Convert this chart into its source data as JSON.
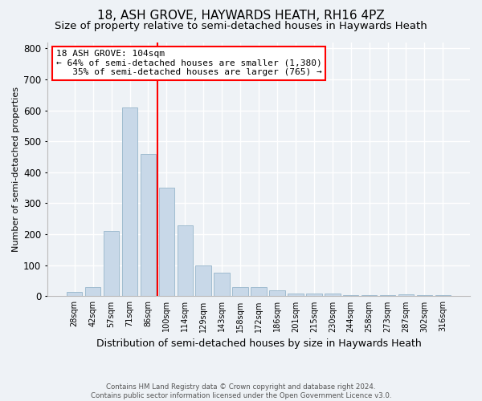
{
  "title": "18, ASH GROVE, HAYWARDS HEATH, RH16 4PZ",
  "subtitle": "Size of property relative to semi-detached houses in Haywards Heath",
  "xlabel": "Distribution of semi-detached houses by size in Haywards Heath",
  "ylabel": "Number of semi-detached properties",
  "footer_line1": "Contains HM Land Registry data © Crown copyright and database right 2024.",
  "footer_line2": "Contains public sector information licensed under the Open Government Licence v3.0.",
  "categories": [
    "28sqm",
    "42sqm",
    "57sqm",
    "71sqm",
    "86sqm",
    "100sqm",
    "114sqm",
    "129sqm",
    "143sqm",
    "158sqm",
    "172sqm",
    "186sqm",
    "201sqm",
    "215sqm",
    "230sqm",
    "244sqm",
    "258sqm",
    "273sqm",
    "287sqm",
    "302sqm",
    "316sqm"
  ],
  "values": [
    15,
    30,
    210,
    610,
    460,
    350,
    230,
    100,
    75,
    30,
    30,
    20,
    10,
    8,
    8,
    3,
    3,
    3,
    5,
    3,
    3
  ],
  "bar_color": "#c8d8e8",
  "bar_edge_color": "#a0bcd0",
  "red_line_x": 4.5,
  "annotation_line1": "18 ASH GROVE: 104sqm",
  "annotation_line2": "← 64% of semi-detached houses are smaller (1,380)",
  "annotation_line3": "   35% of semi-detached houses are larger (765) →",
  "annotation_box_color": "white",
  "annotation_box_edge_color": "red",
  "ylim": [
    0,
    820
  ],
  "yticks": [
    0,
    100,
    200,
    300,
    400,
    500,
    600,
    700,
    800
  ],
  "background_color": "#eef2f6",
  "title_fontsize": 11,
  "subtitle_fontsize": 9.5,
  "xlabel_fontsize": 9,
  "ylabel_fontsize": 8
}
